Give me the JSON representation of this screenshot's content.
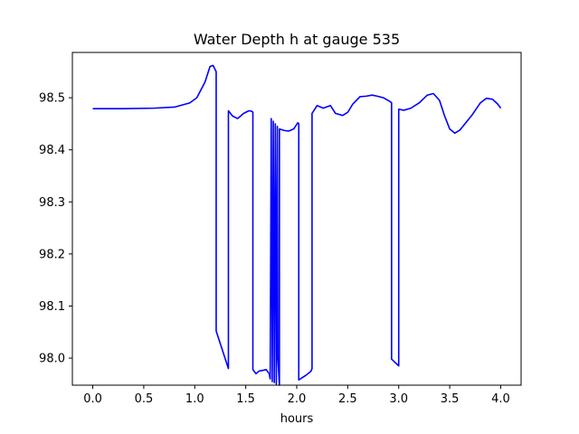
{
  "chart_data": {
    "type": "line",
    "title": "Water Depth h at gauge 535",
    "xlabel": "hours",
    "ylabel": "",
    "xlim": [
      -0.2,
      4.2
    ],
    "ylim": [
      97.948,
      98.587
    ],
    "xticks": [
      0.0,
      0.5,
      1.0,
      1.5,
      2.0,
      2.5,
      3.0,
      3.5,
      4.0
    ],
    "xtick_labels": [
      "0.0",
      "0.5",
      "1.0",
      "1.5",
      "2.0",
      "2.5",
      "3.0",
      "3.5",
      "4.0"
    ],
    "yticks": [
      98.0,
      98.1,
      98.2,
      98.3,
      98.4,
      98.5
    ],
    "ytick_labels": [
      "98.0",
      "98.1",
      "98.2",
      "98.3",
      "98.4",
      "98.5"
    ],
    "grid": false,
    "colors": {
      "line": "#0000ff"
    },
    "series": [
      {
        "x": [
          0.0,
          0.3,
          0.6,
          0.8,
          0.95,
          1.02,
          1.1,
          1.15,
          1.18,
          1.21,
          1.21,
          1.33,
          1.33,
          1.37,
          1.42,
          1.48,
          1.53,
          1.56,
          1.57,
          1.57,
          1.6,
          1.63,
          1.68,
          1.7,
          1.73,
          1.74,
          1.75,
          1.76,
          1.77,
          1.78,
          1.79,
          1.8,
          1.81,
          1.815,
          1.83,
          1.83,
          1.88,
          1.92,
          1.97,
          2.01,
          2.02,
          2.02,
          2.05,
          2.09,
          2.14,
          2.15,
          2.15,
          2.2,
          2.26,
          2.33,
          2.38,
          2.45,
          2.5,
          2.55,
          2.62,
          2.68,
          2.74,
          2.79,
          2.85,
          2.92,
          2.93,
          2.93,
          3.0,
          3.0,
          3.05,
          3.12,
          3.2,
          3.28,
          3.34,
          3.4,
          3.45,
          3.5,
          3.55,
          3.6,
          3.65,
          3.72,
          3.8,
          3.86,
          3.92,
          3.97,
          4.0
        ],
        "y": [
          98.479,
          98.479,
          98.48,
          98.482,
          98.49,
          98.5,
          98.53,
          98.56,
          98.562,
          98.55,
          98.052,
          97.98,
          98.475,
          98.465,
          98.46,
          98.47,
          98.475,
          98.474,
          98.472,
          97.978,
          97.97,
          97.975,
          97.977,
          97.978,
          97.97,
          97.96,
          98.46,
          97.955,
          98.455,
          97.953,
          98.45,
          97.95,
          98.445,
          98.0,
          97.948,
          98.44,
          98.437,
          98.436,
          98.44,
          98.452,
          98.45,
          97.958,
          97.962,
          97.967,
          97.975,
          97.98,
          98.47,
          98.485,
          98.48,
          98.485,
          98.47,
          98.466,
          98.472,
          98.488,
          98.502,
          98.503,
          98.505,
          98.503,
          98.5,
          98.492,
          98.49,
          97.998,
          97.985,
          98.478,
          98.476,
          98.48,
          98.49,
          98.505,
          98.508,
          98.495,
          98.465,
          98.44,
          98.432,
          98.438,
          98.45,
          98.467,
          98.49,
          98.499,
          98.497,
          98.488,
          98.48
        ]
      }
    ]
  }
}
